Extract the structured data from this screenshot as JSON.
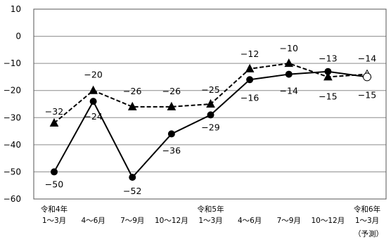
{
  "chart_data": {
    "type": "line",
    "title": "",
    "xlabel": "",
    "ylabel": "",
    "ylim": [
      -60,
      10
    ],
    "yticks": [
      10,
      0,
      -10,
      -20,
      -30,
      -40,
      -50,
      -60
    ],
    "grid": "horizontal",
    "legend": "none",
    "categories": [
      {
        "top": "令和4年",
        "bottom": "1～3月"
      },
      {
        "top": "",
        "bottom": "4～6月"
      },
      {
        "top": "",
        "bottom": "7～9月"
      },
      {
        "top": "",
        "bottom": "10～12月"
      },
      {
        "top": "令和5年",
        "bottom": "1～3月"
      },
      {
        "top": "",
        "bottom": "4～6月"
      },
      {
        "top": "",
        "bottom": "7～9月"
      },
      {
        "top": "",
        "bottom": "10～12月"
      },
      {
        "top": "令和6年",
        "bottom": "1～3月"
      }
    ],
    "forecast_note": "（予測）",
    "series": [
      {
        "line_style": "dashed",
        "marker": "triangle",
        "color": "#000000",
        "values": [
          -32,
          -20,
          -26,
          -26,
          -25,
          -12,
          -10,
          -15,
          -14
        ],
        "labels": [
          "−32",
          "−20",
          "−26",
          "−26",
          "−25",
          "−12",
          "−10",
          "−15",
          "−14"
        ],
        "last_point_hollow": true
      },
      {
        "line_style": "solid",
        "marker": "circle",
        "color": "#000000",
        "values": [
          -50,
          -24,
          -52,
          -36,
          -29,
          -16,
          -14,
          -13,
          -15
        ],
        "labels": [
          "−50",
          "−24",
          "−52",
          "−36",
          "−29",
          "−16",
          "−14",
          "−13",
          "−15"
        ],
        "last_point_hollow": true
      }
    ]
  }
}
